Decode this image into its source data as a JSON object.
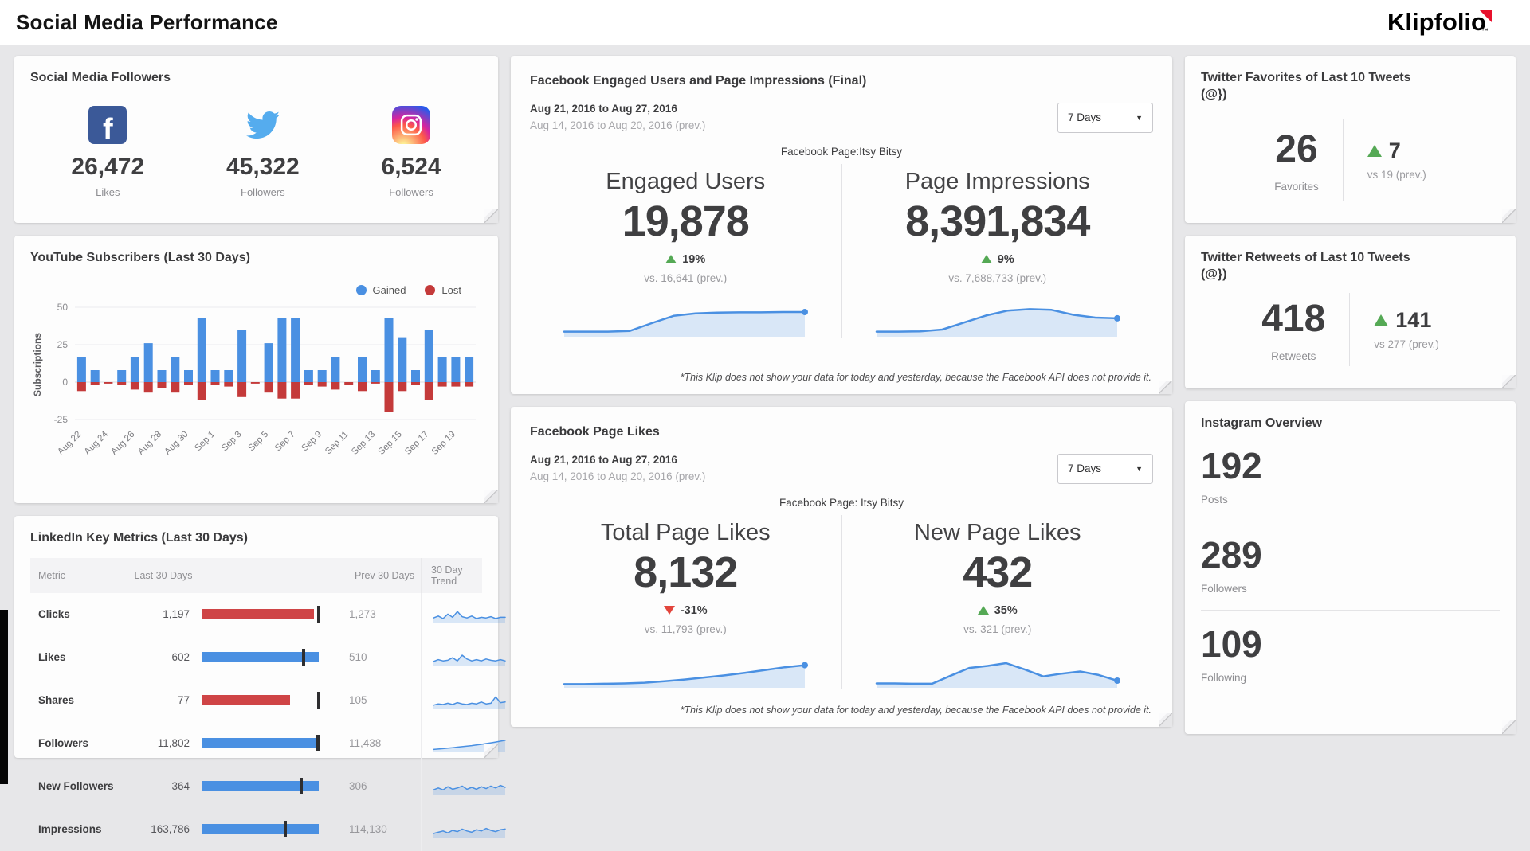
{
  "header": {
    "title": "Social Media Performance",
    "brand": "Klipfolio"
  },
  "colors": {
    "accent_blue": "#4a90e2",
    "negative_red": "#cf4446",
    "positive_green": "#55a955",
    "brand_red": "#e8112d"
  },
  "social_followers": {
    "title": "Social Media Followers",
    "items": [
      {
        "network": "facebook",
        "icon": "facebook-icon",
        "value": "26,472",
        "label": "Likes"
      },
      {
        "network": "twitter",
        "icon": "twitter-icon",
        "value": "45,322",
        "label": "Followers"
      },
      {
        "network": "instagram",
        "icon": "instagram-icon",
        "value": "6,524",
        "label": "Followers"
      }
    ]
  },
  "youtube": {
    "title": "YouTube Subscribers (Last 30 Days)",
    "legend": [
      {
        "label": "Gained",
        "color": "#4a90e2"
      },
      {
        "label": "Lost",
        "color": "#c43a3a"
      }
    ],
    "ylabel": "Subscriptions"
  },
  "linkedin": {
    "title": "LinkedIn Key Metrics (Last 30 Days)",
    "headers": [
      "Metric",
      "Last 30 Days",
      "Prev 30 Days",
      "30 Day Trend"
    ],
    "rows": [
      {
        "metric": "Clicks",
        "last30": "1,197",
        "prev30": "1,273",
        "bar_color": "#cf4446",
        "bar_pct": 93,
        "tick_pct": 96,
        "trend": [
          30,
          45,
          25,
          60,
          35,
          80,
          40,
          30,
          45,
          25,
          35,
          30,
          40,
          25,
          35,
          35
        ]
      },
      {
        "metric": "Likes",
        "last30": "602",
        "prev30": "510",
        "bar_color": "#4a90e2",
        "bar_pct": 97,
        "tick_pct": 83,
        "trend": [
          25,
          40,
          30,
          35,
          55,
          30,
          75,
          45,
          30,
          40,
          30,
          45,
          35,
          30,
          40,
          30
        ]
      },
      {
        "metric": "Shares",
        "last30": "77",
        "prev30": "105",
        "bar_color": "#cf4446",
        "bar_pct": 73,
        "tick_pct": 96,
        "trend": [
          20,
          30,
          25,
          35,
          25,
          40,
          30,
          25,
          35,
          30,
          45,
          30,
          35,
          85,
          40,
          45
        ]
      },
      {
        "metric": "Followers",
        "last30": "11,802",
        "prev30": "11,438",
        "bar_color": "#4a90e2",
        "bar_pct": 97,
        "tick_pct": 95,
        "trend": [
          10,
          13,
          16,
          20,
          24,
          28,
          32,
          36,
          40,
          45,
          50,
          56,
          62,
          68,
          75,
          82
        ]
      },
      {
        "metric": "New Followers",
        "last30": "364",
        "prev30": "306",
        "bar_color": "#4a90e2",
        "bar_pct": 97,
        "tick_pct": 81,
        "trend": [
          30,
          45,
          30,
          55,
          35,
          45,
          60,
          35,
          50,
          35,
          55,
          40,
          60,
          45,
          65,
          50
        ]
      },
      {
        "metric": "Impressions",
        "last30": "163,786",
        "prev30": "114,130",
        "bar_color": "#4a90e2",
        "bar_pct": 97,
        "tick_pct": 68,
        "trend": [
          25,
          35,
          45,
          30,
          50,
          40,
          60,
          45,
          35,
          55,
          45,
          65,
          50,
          40,
          55,
          60
        ]
      }
    ]
  },
  "facebook_engagement": {
    "title": "Facebook Engaged Users and Page Impressions (Final)",
    "date_range": "Aug 21, 2016 to Aug 27, 2016",
    "date_range_prev": "Aug 14, 2016 to Aug 20, 2016 (prev.)",
    "period_select": "7 Days",
    "page_label": "Facebook Page:Itsy Bitsy",
    "metrics": [
      {
        "name": "Engaged Users",
        "value": "19,878",
        "delta": "19%",
        "direction": "up",
        "vs": "vs. 16,641 (prev.)",
        "spark": [
          10,
          10,
          10,
          12,
          34,
          55,
          62,
          64,
          65,
          65,
          66,
          66
        ]
      },
      {
        "name": "Page Impressions",
        "value": "8,391,834",
        "delta": "9%",
        "direction": "up",
        "vs": "vs. 7,688,733 (prev.)",
        "spark": [
          10,
          10,
          11,
          16,
          36,
          56,
          70,
          74,
          72,
          58,
          50,
          48
        ]
      }
    ],
    "footnote": "*This Klip does not show your data for today and yesterday, because the Facebook API does not provide it."
  },
  "facebook_likes": {
    "title": "Facebook Page Likes",
    "date_range": "Aug 21, 2016 to Aug 27, 2016",
    "date_range_prev": "Aug 14, 2016 to Aug 20, 2016 (prev.)",
    "period_select": "7 Days",
    "page_label": "Facebook Page: Itsy Bitsy",
    "metrics": [
      {
        "name": "Total Page Likes",
        "value": "8,132",
        "delta": "-31%",
        "direction": "down",
        "vs": "vs. 11,793 (prev.)",
        "spark": [
          6,
          6,
          7,
          8,
          10,
          14,
          19,
          25,
          31,
          38,
          46,
          54,
          60
        ]
      },
      {
        "name": "New Page Likes",
        "value": "432",
        "delta": "35%",
        "direction": "up",
        "vs": "vs. 321 (prev.)",
        "spark": [
          8,
          8,
          7,
          7,
          30,
          52,
          58,
          66,
          48,
          28,
          36,
          42,
          32,
          16
        ]
      }
    ],
    "footnote": "*This Klip does not show your data for today and yesterday, because the Facebook API does not provide it."
  },
  "twitter_favorites": {
    "title": "Twitter Favorites of Last 10 Tweets (@})",
    "value": "26",
    "label": "Favorites",
    "delta": "7",
    "direction": "up",
    "vs": "vs 19 (prev.)"
  },
  "twitter_retweets": {
    "title": "Twitter Retweets of Last 10 Tweets (@})",
    "value": "418",
    "label": "Retweets",
    "delta": "141",
    "direction": "up",
    "vs": "vs 277 (prev.)"
  },
  "instagram_overview": {
    "title": "Instagram Overview",
    "stats": [
      {
        "value": "192",
        "label": "Posts"
      },
      {
        "value": "289",
        "label": "Followers"
      },
      {
        "value": "109",
        "label": "Following"
      }
    ]
  },
  "chart_data": {
    "type": "bar",
    "title": "YouTube Subscribers (Last 30 Days)",
    "xlabel": "",
    "ylabel": "Subscriptions",
    "ylim": [
      -25,
      50
    ],
    "yticks": [
      50,
      25,
      0,
      -25
    ],
    "x_tick_labels": [
      "Aug 22",
      "Aug 24",
      "Aug 26",
      "Aug 28",
      "Aug 30",
      "Sep 1",
      "Sep 3",
      "Sep 5",
      "Sep 7",
      "Sep 9",
      "Sep 11",
      "Sep 13",
      "Sep 15",
      "Sep 17",
      "Sep 19"
    ],
    "series": [
      {
        "name": "Gained",
        "color": "#4a90e2",
        "values": [
          17,
          8,
          0,
          8,
          17,
          26,
          8,
          17,
          8,
          43,
          8,
          8,
          35,
          0,
          26,
          43,
          43,
          8,
          8,
          17,
          0,
          17,
          8,
          43,
          30,
          8,
          35,
          17,
          17,
          17
        ]
      },
      {
        "name": "Lost",
        "color": "#c43a3a",
        "values": [
          -6,
          -2,
          -1,
          -2,
          -5,
          -7,
          -4,
          -7,
          -2,
          -12,
          -2,
          -3,
          -10,
          -1,
          -7,
          -11,
          -11,
          -2,
          -3,
          -5,
          -2,
          -6,
          -1,
          -20,
          -6,
          -2,
          -12,
          -3,
          -3,
          -3
        ]
      }
    ],
    "legend_position": "top-right",
    "grid": true
  }
}
